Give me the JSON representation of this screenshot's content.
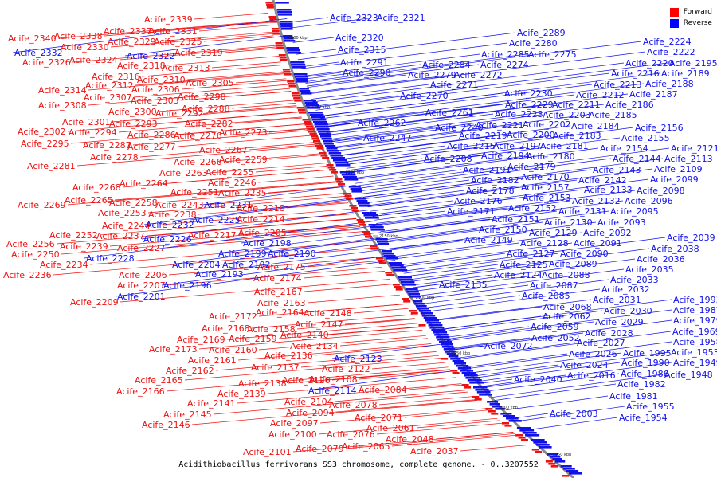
{
  "title": "Acidithiobacillus ferrivorans SS3 chromosome, complete genome. - 0..3207552",
  "legend": [
    {
      "label": "Forward",
      "color": "#ff0000"
    },
    {
      "label": "Reverse",
      "color": "#0000ff"
    }
  ],
  "colors": {
    "forward": "#ee1111",
    "reverse": "#1111ee",
    "backbone": "#888888"
  },
  "ticks": [
    "2300 kbp",
    "2250 kbp",
    "2200 kbp",
    "2150 kbp",
    "2100 kbp",
    "2050 kbp",
    "2000 kbp",
    "1950 kbp"
  ],
  "forward_labels": [
    [
      "Acife_2339",
      181,
      20
    ],
    [
      "Acife_2337",
      130,
      35
    ],
    [
      "Acife_2331",
      187,
      35
    ],
    [
      "Acife_2340",
      10,
      44
    ],
    [
      "Acife_2338",
      68,
      41
    ],
    [
      "Acife_2329",
      135,
      48
    ],
    [
      "Acife_2325",
      193,
      48
    ],
    [
      "Acife_2330",
      76,
      55
    ],
    [
      "Acife_2319",
      219,
      62
    ],
    [
      "Acife_2326",
      28,
      74
    ],
    [
      "Acife_2324",
      87,
      71
    ],
    [
      "Acife_2318",
      147,
      78
    ],
    [
      "Acife_2313",
      203,
      81
    ],
    [
      "Acife_2316",
      115,
      92
    ],
    [
      "Acife_2310",
      172,
      96
    ],
    [
      "Acife_2305",
      233,
      100
    ],
    [
      "Acife_2314",
      48,
      109
    ],
    [
      "Acife_2312",
      107,
      103
    ],
    [
      "Acife_2306",
      165,
      108
    ],
    [
      "Acife_2298",
      223,
      117
    ],
    [
      "Acife_2307",
      105,
      118
    ],
    [
      "Acife_2303",
      164,
      122
    ],
    [
      "Acife_2308",
      48,
      128
    ],
    [
      "Acife_2288",
      228,
      132
    ],
    [
      "Acife_2300",
      136,
      136
    ],
    [
      "Acife_2292",
      195,
      138
    ],
    [
      "Acife_2301",
      78,
      149
    ],
    [
      "Acife_2293",
      137,
      151
    ],
    [
      "Acife_2282",
      232,
      151
    ],
    [
      "Acife_2302",
      22,
      161
    ],
    [
      "Acife_2294",
      86,
      162
    ],
    [
      "Acife_2286",
      160,
      165
    ],
    [
      "Acife_2276",
      218,
      166
    ],
    [
      "Acife_2273",
      275,
      162
    ],
    [
      "Acife_2295",
      26,
      176
    ],
    [
      "Acife_2287",
      104,
      178
    ],
    [
      "Acife_2277",
      160,
      180
    ],
    [
      "Acife_2267",
      250,
      184
    ],
    [
      "Acife_2278",
      113,
      193
    ],
    [
      "Acife_2266",
      218,
      199
    ],
    [
      "Acife_2259",
      275,
      196
    ],
    [
      "Acife_2281",
      34,
      204
    ],
    [
      "Acife_2263",
      200,
      213
    ],
    [
      "Acife_2255",
      258,
      212
    ],
    [
      "Acife_2264",
      150,
      226
    ],
    [
      "Acife_2246",
      261,
      225
    ],
    [
      "Acife_2268",
      91,
      231
    ],
    [
      "Acife_2251",
      214,
      237
    ],
    [
      "Acife_2235",
      274,
      238
    ],
    [
      "Acife_2265",
      81,
      247
    ],
    [
      "Acife_2258",
      137,
      250
    ],
    [
      "Acife_2243",
      195,
      253
    ],
    [
      "Acife_2269",
      22,
      253
    ],
    [
      "Acife_2218",
      297,
      257
    ],
    [
      "Acife_2253",
      123,
      263
    ],
    [
      "Acife_2238",
      186,
      265
    ],
    [
      "Acife_2214",
      297,
      271
    ],
    [
      "Acife_2244",
      128,
      279
    ],
    [
      "Acife_2252",
      62,
      291
    ],
    [
      "Acife_2237",
      121,
      292
    ],
    [
      "Acife_2217",
      236,
      291
    ],
    [
      "Acife_2205",
      299,
      288
    ],
    [
      "Acife_2256",
      8,
      302
    ],
    [
      "Acife_2239",
      75,
      305
    ],
    [
      "Acife_2227",
      147,
      307
    ],
    [
      "Acife_2250",
      14,
      315
    ],
    [
      "Acife_2234",
      50,
      328
    ],
    [
      "Acife_2175",
      323,
      331
    ],
    [
      "Acife_2236",
      4,
      341
    ],
    [
      "Acife_2174",
      318,
      345
    ],
    [
      "Acife_2206",
      149,
      341
    ],
    [
      "Acife_2207",
      147,
      354
    ],
    [
      "Acife_2167",
      319,
      362
    ],
    [
      "Acife_2209",
      88,
      375
    ],
    [
      "Acife_2163",
      323,
      376
    ],
    [
      "Acife_2172",
      262,
      393
    ],
    [
      "Acife_2164",
      321,
      388
    ],
    [
      "Acife_2148",
      381,
      389
    ],
    [
      "Acife_2168",
      253,
      408
    ],
    [
      "Acife_2158",
      310,
      409
    ],
    [
      "Acife_2147",
      370,
      403
    ],
    [
      "Acife_2169",
      222,
      422
    ],
    [
      "Acife_2159",
      287,
      421
    ],
    [
      "Acife_2140",
      352,
      416
    ],
    [
      "Acife_2173",
      187,
      434
    ],
    [
      "Acife_2160",
      262,
      435
    ],
    [
      "Acife_2134",
      364,
      430
    ],
    [
      "Acife_2161",
      236,
      448
    ],
    [
      "Acife_2136",
      332,
      442
    ],
    [
      "Acife_2162",
      208,
      461
    ],
    [
      "Acife_2137",
      315,
      457
    ],
    [
      "Acife_2122",
      404,
      459
    ],
    [
      "Acife_2165",
      169,
      473
    ],
    [
      "Acife_2138",
      299,
      477
    ],
    [
      "Acife_2126",
      354,
      473
    ],
    [
      "Acife_2108",
      388,
      472
    ],
    [
      "Acife_2166",
      146,
      487
    ],
    [
      "Acife_2139",
      273,
      490
    ],
    [
      "Acife_2084",
      450,
      485
    ],
    [
      "Acife_2141",
      235,
      502
    ],
    [
      "Acife_2104",
      357,
      500
    ],
    [
      "Acife_2078",
      413,
      504
    ],
    [
      "Acife_2145",
      205,
      516
    ],
    [
      "Acife_2094",
      359,
      514
    ],
    [
      "Acife_2071",
      445,
      520
    ],
    [
      "Acife_2146",
      178,
      529
    ],
    [
      "Acife_2097",
      339,
      527
    ],
    [
      "Acife_2061",
      460,
      533
    ],
    [
      "Acife_2100",
      337,
      541
    ],
    [
      "Acife_2076",
      410,
      541
    ],
    [
      "Acife_2048",
      484,
      547
    ],
    [
      "Acife_2079",
      371,
      559
    ],
    [
      "Acife_2065",
      429,
      556
    ],
    [
      "Acife_2037",
      515,
      562
    ],
    [
      "Acife_2101",
      305,
      563
    ]
  ],
  "reverse_labels": [
    [
      "Acife_2323",
      414,
      18
    ],
    [
      "Acife_2321",
      473,
      18
    ],
    [
      "Acife_2332",
      18,
      62
    ],
    [
      "Acife_2322",
      159,
      66
    ],
    [
      "Acife_2320",
      421,
      43
    ],
    [
      "Acife_2315",
      424,
      58
    ],
    [
      "Acife_2291",
      427,
      74
    ],
    [
      "Acife_2290",
      430,
      87
    ],
    [
      "Acife_2289",
      649,
      37
    ],
    [
      "Acife_2280",
      639,
      50
    ],
    [
      "Acife_2285",
      604,
      64
    ],
    [
      "Acife_2275",
      663,
      64
    ],
    [
      "Acife_2284",
      530,
      77
    ],
    [
      "Acife_2274",
      603,
      77
    ],
    [
      "Acife_2279",
      512,
      90
    ],
    [
      "Acife_2272",
      570,
      90
    ],
    [
      "Acife_2271",
      540,
      102
    ],
    [
      "Acife_2270",
      502,
      116
    ],
    [
      "Acife_2224",
      807,
      48
    ],
    [
      "Acife_2222",
      812,
      61
    ],
    [
      "Acife_2220",
      785,
      75
    ],
    [
      "Acife_2195",
      840,
      75
    ],
    [
      "Acife_2216",
      767,
      88
    ],
    [
      "Acife_2189",
      830,
      88
    ],
    [
      "Acife_2213",
      745,
      102
    ],
    [
      "Acife_2188",
      810,
      101
    ],
    [
      "Acife_2230",
      633,
      113
    ],
    [
      "Acife_2212",
      723,
      115
    ],
    [
      "Acife_2187",
      790,
      114
    ],
    [
      "Acife_2229",
      634,
      127
    ],
    [
      "Acife_2211",
      693,
      127
    ],
    [
      "Acife_2186",
      760,
      127
    ],
    [
      "Acife_2261",
      534,
      137
    ],
    [
      "Acife_2223",
      621,
      139
    ],
    [
      "Acife_2203",
      681,
      140
    ],
    [
      "Acife_2185",
      739,
      140
    ],
    [
      "Acife_2262",
      449,
      150
    ],
    [
      "Acife_2221",
      597,
      153
    ],
    [
      "Acife_2202",
      656,
      152
    ],
    [
      "Acife_2184",
      717,
      154
    ],
    [
      "Acife_2240",
      546,
      156
    ],
    [
      "Acife_2156",
      797,
      156
    ],
    [
      "Acife_2247",
      456,
      169
    ],
    [
      "Acife_2219",
      576,
      166
    ],
    [
      "Acife_2200",
      636,
      165
    ],
    [
      "Acife_2183",
      694,
      166
    ],
    [
      "Acife_2155",
      780,
      169
    ],
    [
      "Acife_2215",
      561,
      179
    ],
    [
      "Acife_2197",
      619,
      179
    ],
    [
      "Acife_2181",
      678,
      179
    ],
    [
      "Acife_2154",
      753,
      182
    ],
    [
      "Acife_2121",
      842,
      182
    ],
    [
      "Acife_2208",
      532,
      195
    ],
    [
      "Acife_2194",
      604,
      191
    ],
    [
      "Acife_2180",
      661,
      192
    ],
    [
      "Acife_2144",
      769,
      195
    ],
    [
      "Acife_2113",
      834,
      195
    ],
    [
      "Acife_2191",
      581,
      209
    ],
    [
      "Acife_2179",
      637,
      205
    ],
    [
      "Acife_2143",
      744,
      209
    ],
    [
      "Acife_2109",
      821,
      208
    ],
    [
      "Acife_2182",
      591,
      222
    ],
    [
      "Acife_2170",
      654,
      218
    ],
    [
      "Acife_2142",
      726,
      222
    ],
    [
      "Acife_2099",
      816,
      221
    ],
    [
      "Acife_2178",
      585,
      235
    ],
    [
      "Acife_2157",
      654,
      231
    ],
    [
      "Acife_2133",
      733,
      234
    ],
    [
      "Acife_2098",
      799,
      235
    ],
    [
      "Acife_2176",
      570,
      248
    ],
    [
      "Acife_2153",
      656,
      244
    ],
    [
      "Acife_2132",
      718,
      248
    ],
    [
      "Acife_2096",
      784,
      248
    ],
    [
      "Acife_2171",
      561,
      261
    ],
    [
      "Acife_2152",
      638,
      257
    ],
    [
      "Acife_2131",
      701,
      261
    ],
    [
      "Acife_2095",
      766,
      261
    ],
    [
      "Acife_2151",
      617,
      271
    ],
    [
      "Acife_2130",
      683,
      275
    ],
    [
      "Acife_2093",
      750,
      275
    ],
    [
      "Acife_2150",
      601,
      284
    ],
    [
      "Acife_2129",
      664,
      288
    ],
    [
      "Acife_2092",
      732,
      288
    ],
    [
      "Acife_2149",
      583,
      297
    ],
    [
      "Acife_2128",
      653,
      301
    ],
    [
      "Acife_2091",
      720,
      301
    ],
    [
      "Acife_2127",
      636,
      314
    ],
    [
      "Acife_2090",
      703,
      314
    ],
    [
      "Acife_2039",
      837,
      294
    ],
    [
      "Acife_2038",
      817,
      308
    ],
    [
      "Acife_2036",
      799,
      321
    ],
    [
      "Acife_2035",
      785,
      334
    ],
    [
      "Acife_2033",
      766,
      347
    ],
    [
      "Acife_2032",
      755,
      359
    ],
    [
      "Acife_2125",
      627,
      328
    ],
    [
      "Acife_2089",
      689,
      327
    ],
    [
      "Acife_2124",
      620,
      341
    ],
    [
      "Acife_2088",
      680,
      341
    ],
    [
      "Acife_2135",
      551,
      353
    ],
    [
      "Acife_2087",
      665,
      354
    ],
    [
      "Acife_2085",
      655,
      367
    ],
    [
      "Acife_2031",
      744,
      372
    ],
    [
      "Acife_1993",
      845,
      372
    ],
    [
      "Acife_2068",
      682,
      381
    ],
    [
      "Acife_2030",
      758,
      386
    ],
    [
      "Acife_1987",
      845,
      385
    ],
    [
      "Acife_2062",
      681,
      393
    ],
    [
      "Acife_2029",
      747,
      400
    ],
    [
      "Acife_1979",
      845,
      398
    ],
    [
      "Acife_2059",
      666,
      406
    ],
    [
      "Acife_2028",
      734,
      414
    ],
    [
      "Acife_1969",
      844,
      412
    ],
    [
      "Acife_2052",
      667,
      420
    ],
    [
      "Acife_2027",
      724,
      426
    ],
    [
      "Acife_1958",
      845,
      425
    ],
    [
      "Acife_2072",
      608,
      430
    ],
    [
      "Acife_2026",
      714,
      440
    ],
    [
      "Acife_1995",
      782,
      439
    ],
    [
      "Acife_1953",
      842,
      438
    ],
    [
      "Acife_2024",
      703,
      454
    ],
    [
      "Acife_1990",
      780,
      451
    ],
    [
      "Acife_1949",
      845,
      451
    ],
    [
      "Acife_2040",
      645,
      472
    ],
    [
      "Acife_2016",
      712,
      467
    ],
    [
      "Acife_1986",
      779,
      465
    ],
    [
      "Acife_1948",
      834,
      466
    ],
    [
      "Acife_1982",
      775,
      478
    ],
    [
      "Acife_1981",
      765,
      493
    ],
    [
      "Acife_1955",
      786,
      506
    ],
    [
      "Acife_2003",
      690,
      515
    ],
    [
      "Acife_1954",
      777,
      520
    ],
    [
      "Acife_2204",
      216,
      328
    ],
    [
      "Acife_2192",
      279,
      328
    ],
    [
      "Acife_2193",
      245,
      340
    ],
    [
      "Acife_2196",
      205,
      354
    ],
    [
      "Acife_2201",
      147,
      368
    ],
    [
      "Acife_2198",
      305,
      301
    ],
    [
      "Acife_2199",
      274,
      314
    ],
    [
      "Acife_2190",
      336,
      314
    ],
    [
      "Acife_2228",
      108,
      320
    ],
    [
      "Acife_2226",
      180,
      296
    ],
    [
      "Acife_2225",
      241,
      272
    ],
    [
      "Acife_2232",
      183,
      278
    ],
    [
      "Acife_2231",
      256,
      253
    ],
    [
      "Acife_2123",
      419,
      446
    ],
    [
      "Acife_2114",
      387,
      486
    ]
  ]
}
